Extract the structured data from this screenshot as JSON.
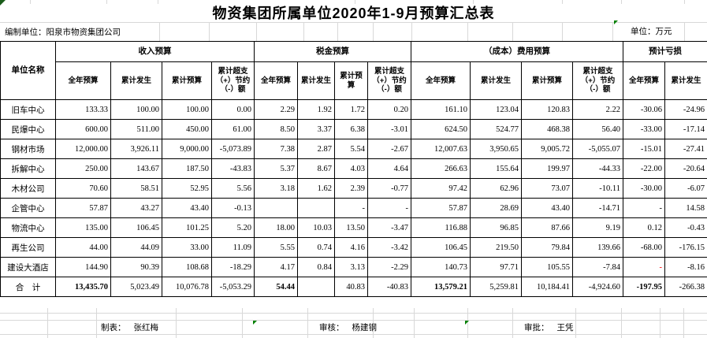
{
  "title": "物资集团所属单位2020年1-9月预算汇总表",
  "meta": {
    "prepared_by": "编制单位：阳泉市物资集团公司",
    "unit": "单位：万元"
  },
  "table": {
    "corner_header": "单位名称",
    "groups": [
      {
        "label": "收入预算",
        "span": 4
      },
      {
        "label": "税金预算",
        "span": 4
      },
      {
        "label": "（成本）费用预算",
        "span": 4
      },
      {
        "label": "预计亏损",
        "span": 2
      }
    ],
    "sub_headers": [
      "全年预算",
      "累计发生",
      "累计预算",
      "累计超支（+）节约（-）额",
      "全年预算",
      "累计发生",
      "累计预算",
      "累计超支（+）节约（-）额",
      "全年预算",
      "累计发生",
      "累计预算",
      "累计超支（+）节约（-）额",
      "全年预算",
      "累计发生"
    ],
    "rows": [
      {
        "name": "旧车中心",
        "values": [
          "133.33",
          "100.00",
          "100.00",
          "0.00",
          "2.29",
          "1.92",
          "1.72",
          "0.20",
          "161.10",
          "123.04",
          "120.83",
          "2.22",
          "-30.06",
          "-24.96"
        ]
      },
      {
        "name": "民爆中心",
        "values": [
          "600.00",
          "511.00",
          "450.00",
          "61.00",
          "8.50",
          "3.37",
          "6.38",
          "-3.01",
          "624.50",
          "524.77",
          "468.38",
          "56.40",
          "-33.00",
          "-17.14"
        ]
      },
      {
        "name": "钢材市场",
        "values": [
          "12,000.00",
          "3,926.11",
          "9,000.00",
          "-5,073.89",
          "7.38",
          "2.87",
          "5.54",
          "-2.67",
          "12,007.63",
          "3,950.65",
          "9,005.72",
          "-5,055.07",
          "-15.01",
          "-27.41"
        ]
      },
      {
        "name": "拆解中心",
        "values": [
          "250.00",
          "143.67",
          "187.50",
          "-43.83",
          "5.37",
          "8.67",
          "4.03",
          "4.64",
          "266.63",
          "155.64",
          "199.97",
          "-44.33",
          "-22.00",
          "-20.64"
        ]
      },
      {
        "name": "木材公司",
        "values": [
          "70.60",
          "58.51",
          "52.95",
          "5.56",
          "3.18",
          "1.62",
          "2.39",
          "-0.77",
          "97.42",
          "62.96",
          "73.07",
          "-10.11",
          "-30.00",
          "-6.07"
        ]
      },
      {
        "name": "企管中心",
        "values": [
          "57.87",
          "43.27",
          "43.40",
          "-0.13",
          "",
          "",
          "-",
          "-",
          "57.87",
          "28.69",
          "43.40",
          "-14.71",
          "-",
          "14.58"
        ]
      },
      {
        "name": "物流中心",
        "values": [
          "135.00",
          "106.45",
          "101.25",
          "5.20",
          "18.00",
          "10.03",
          "13.50",
          "-3.47",
          "116.88",
          "96.85",
          "87.66",
          "9.19",
          "0.12",
          "-0.43"
        ]
      },
      {
        "name": "再生公司",
        "values": [
          "44.00",
          "44.09",
          "33.00",
          "11.09",
          "5.55",
          "0.74",
          "4.16",
          "-3.42",
          "106.45",
          "219.50",
          "79.84",
          "139.66",
          "-68.00",
          "-176.15"
        ]
      },
      {
        "name": "建设大酒店",
        "values": [
          "144.90",
          "90.39",
          "108.68",
          "-18.29",
          "4.17",
          "0.84",
          "3.13",
          "-2.29",
          "140.73",
          "97.71",
          "105.55",
          "-7.84",
          "-",
          "-8.16"
        ],
        "red_cols": [
          12
        ]
      },
      {
        "name": "合　计",
        "values": [
          "13,435.70",
          "5,023.49",
          "10,076.78",
          "-5,053.29",
          "54.44",
          "",
          "40.83",
          "-40.83",
          "13,579.21",
          "5,259.81",
          "10,184.41",
          "-4,924.60",
          "-197.95",
          "-266.38"
        ],
        "bold_cols": [
          0,
          4,
          8,
          12
        ],
        "is_total": true
      }
    ]
  },
  "footer": {
    "preparer_label": "制表：",
    "preparer": "张红梅",
    "reviewer_label": "审核：",
    "reviewer": "杨建钢",
    "approver_label": "审批：",
    "approver": "王凭"
  },
  "colors": {
    "table_border": "#000000",
    "gridline": "#d8d8d8",
    "negative_dash": "#ff0000",
    "flag_green": "#008000"
  }
}
